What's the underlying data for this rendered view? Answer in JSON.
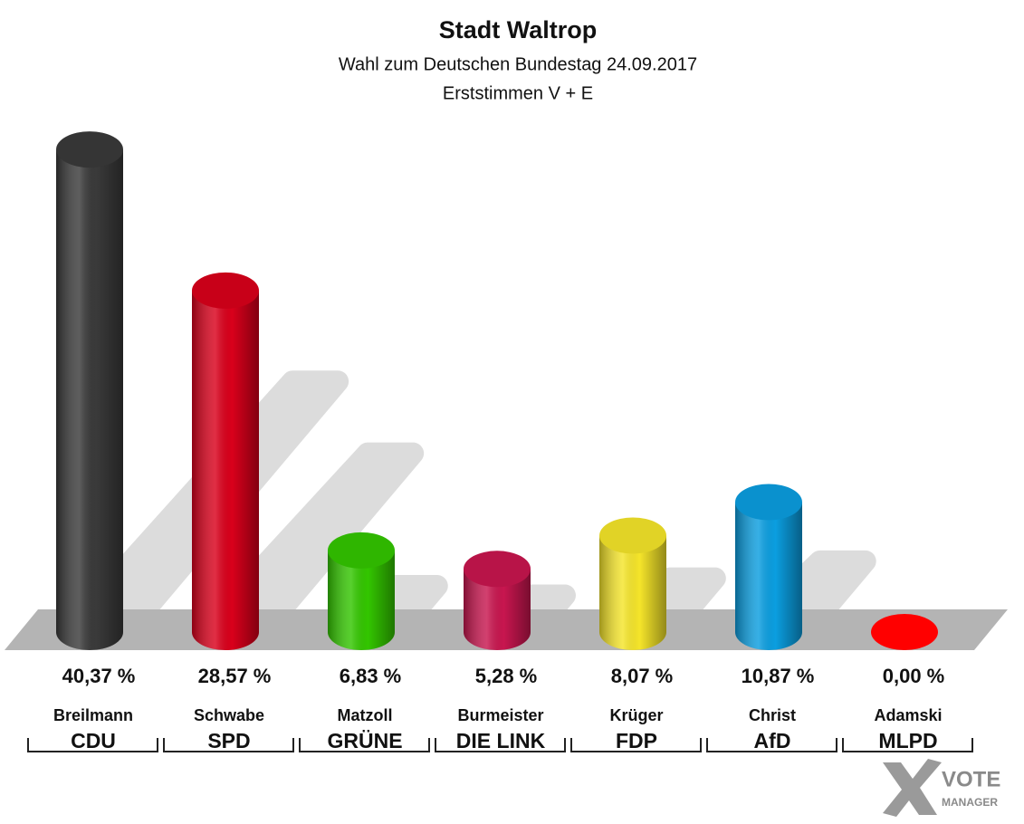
{
  "chart_data": {
    "type": "bar",
    "title": "Stadt Waltrop",
    "subtitle": "Wahl zum Deutschen Bundestag 24.09.2017",
    "subtitle2": "Erststimmen V + E",
    "candidates": [
      "Breilmann",
      "Schwabe",
      "Matzoll",
      "Burmeister",
      "Krüger",
      "Christ",
      "Adamski"
    ],
    "categories": [
      "CDU",
      "SPD",
      "GRÜNE",
      "DIE LINK",
      "FDP",
      "AfD",
      "MLPD"
    ],
    "values": [
      40.37,
      28.57,
      6.83,
      5.28,
      8.07,
      10.87,
      0.0
    ],
    "value_labels": [
      "40,37 %",
      "28,57 %",
      "6,83 %",
      "5,28 %",
      "8,07 %",
      "10,87 %",
      "0,00 %"
    ],
    "colors": [
      "#3a3a3a",
      "#d9001b",
      "#33c600",
      "#c8164f",
      "#f5e52a",
      "#0b9ee0",
      "#ff0000"
    ],
    "watermark": [
      "VOTE",
      "MANAGER"
    ]
  }
}
